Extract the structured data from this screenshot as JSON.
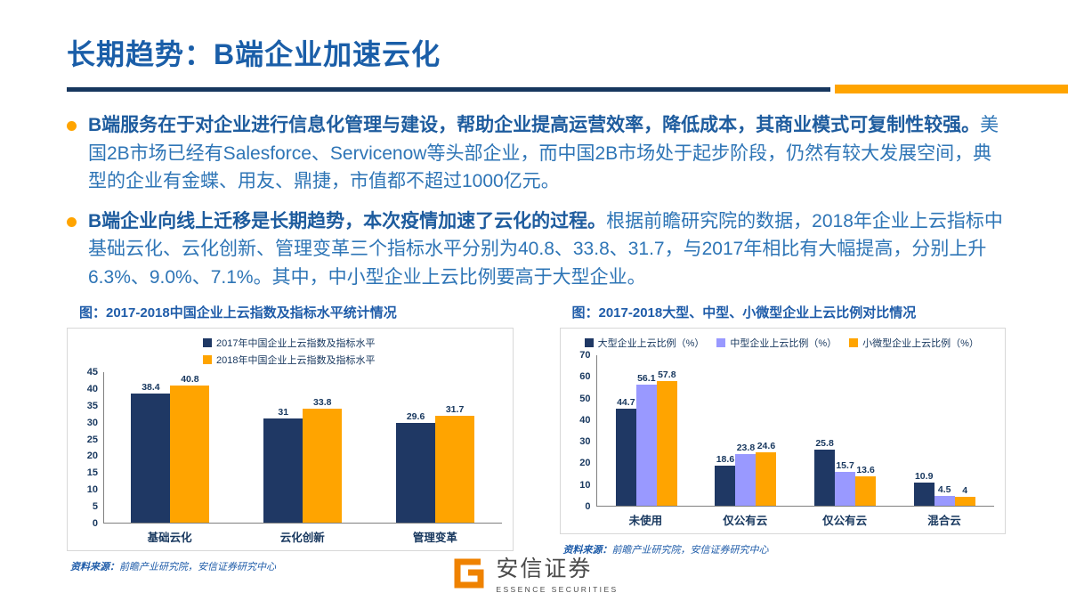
{
  "slide": {
    "title": "长期趋势：B端企业加速云化"
  },
  "bullets": [
    {
      "lead": "B端服务在于对企业进行信息化管理与建设，帮助企业提高运营效率，降低成本，其商业模式可复制性较强。",
      "rest": "美国2B市场已经有Salesforce、Servicenow等头部企业，而中国2B市场处于起步阶段，仍然有较大发展空间，典型的企业有金蝶、用友、鼎捷，市值都不超过1000亿元。"
    },
    {
      "lead": "B端企业向线上迁移是长期趋势，本次疫情加速了云化的过程。",
      "rest": "根据前瞻研究院的数据，2018年企业上云指标中基础云化、云化创新、管理变革三个指标水平分别为40.8、33.8、31.7，与2017年相比有大幅提高，分别上升6.3%、9.0%、7.1%。其中，中小型企业上云比例要高于大型企业。"
    }
  ],
  "chart_data": [
    {
      "type": "bar",
      "title": "图：2017-2018中国企业上云指数及指标水平统计情况",
      "categories": [
        "基础云化",
        "云化创新",
        "管理变革"
      ],
      "series": [
        {
          "name": "2017年中国企业上云指数及指标水平",
          "color": "#1F3864",
          "values": [
            38.4,
            31,
            29.6
          ]
        },
        {
          "name": "2018年中国企业上云指数及指标水平",
          "color": "#FFA400",
          "values": [
            40.8,
            33.8,
            31.7
          ]
        }
      ],
      "ylim": [
        0,
        45
      ],
      "ytick_step": 5,
      "legend_layout": "stacked",
      "grid": false,
      "source_label": "资料来源：",
      "source": "前瞻产业研究院，安信证券研究中心"
    },
    {
      "type": "bar",
      "title": "图：2017-2018大型、中型、小微型企业上云比例对比情况",
      "categories": [
        "未使用",
        "仅公有云",
        "仅公有云",
        "混合云"
      ],
      "series": [
        {
          "name": "大型企业上云比例（%）",
          "color": "#1F3864",
          "values": [
            44.7,
            18.6,
            25.8,
            10.9
          ]
        },
        {
          "name": "中型企业上云比例（%）",
          "color": "#9999FF",
          "values": [
            56.1,
            23.8,
            15.7,
            4.5
          ]
        },
        {
          "name": "小微型企业上云比例（%）",
          "color": "#FFA400",
          "values": [
            57.8,
            24.6,
            13.6,
            4
          ]
        }
      ],
      "ylim": [
        0,
        70
      ],
      "ytick_step": 10,
      "legend_layout": "row",
      "grid": false,
      "source_label": "资料来源：",
      "source": "前瞻产业研究院，安信证券研究中心"
    }
  ],
  "footer": {
    "brand_cn": "安信证券",
    "brand_en": "ESSENCE SECURITIES",
    "logo_color": "#EF8200",
    "logo_icon": "essence-logo-icon"
  }
}
